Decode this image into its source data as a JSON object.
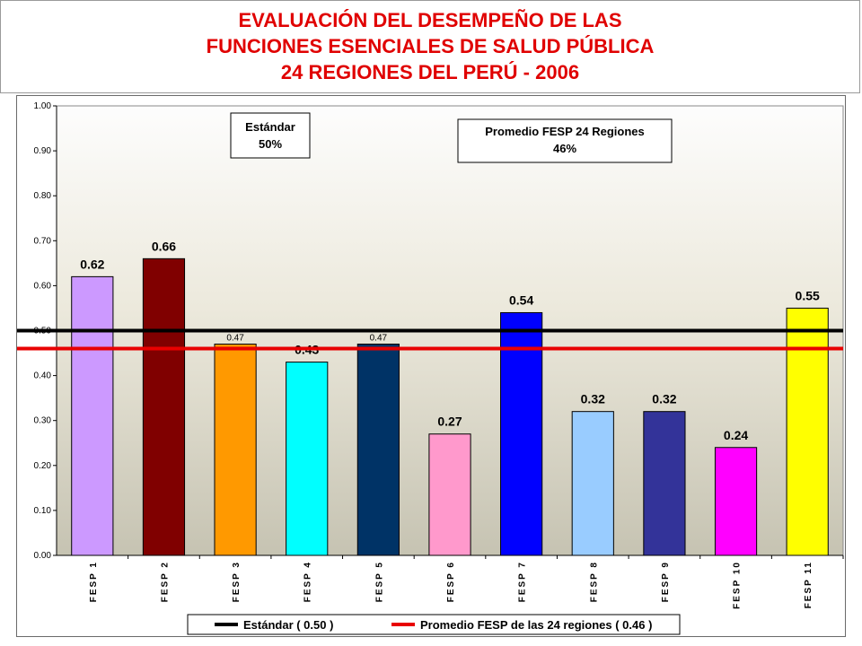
{
  "title": {
    "line1": "EVALUACIÓN DEL DESEMPEÑO DE LAS",
    "line2": "FUNCIONES ESENCIALES  DE  SALUD  PÚBLICA",
    "line3": "24 REGIONES DEL PERÚ - 2006"
  },
  "annotations": {
    "standard_box": {
      "line1": "Estándar",
      "line2": "50%"
    },
    "average_box": {
      "line1": "Promedio FESP 24 Regiones",
      "line2": "46%"
    }
  },
  "legend": {
    "standard": "Estándar ( 0.50 )",
    "average": "Promedio FESP de las 24 regiones ( 0.46 )"
  },
  "colors": {
    "title": "#e00000",
    "standard_line": "#000000",
    "average_line": "#e80000"
  },
  "chart_data": {
    "type": "bar",
    "categories": [
      "FESP 1",
      "FESP 2",
      "FESP 3",
      "FESP 4",
      "FESP 5",
      "FESP 6",
      "FESP 7",
      "FESP 8",
      "FESP 9",
      "FESP 10",
      "FESP 11"
    ],
    "values": [
      0.62,
      0.66,
      0.47,
      0.43,
      0.47,
      0.27,
      0.54,
      0.32,
      0.32,
      0.24,
      0.55
    ],
    "data_labels": [
      "0.62",
      "0.66",
      "0.47",
      "0.43",
      "0.47",
      "0.27",
      "0.54",
      "0.32",
      "0.32",
      "0.24",
      "0.55"
    ],
    "bar_colors": [
      "#cc99ff",
      "#800000",
      "#ff9900",
      "#00ffff",
      "#003366",
      "#ff99cc",
      "#0000ff",
      "#99ccff",
      "#333399",
      "#ff00ff",
      "#ffff00"
    ],
    "yticks": [
      "0.00",
      "0.10",
      "0.20",
      "0.30",
      "0.40",
      "0.50",
      "0.60",
      "0.70",
      "0.80",
      "0.90",
      "1.00"
    ],
    "ylim": [
      0,
      1
    ],
    "reference_lines": [
      {
        "name": "Estándar ( 0.50 )",
        "value": 0.5,
        "color": "#000000"
      },
      {
        "name": "Promedio FESP de las 24 regiones ( 0.46 )",
        "value": 0.46,
        "color": "#e80000"
      }
    ],
    "grid": false,
    "legend_position": "bottom"
  }
}
